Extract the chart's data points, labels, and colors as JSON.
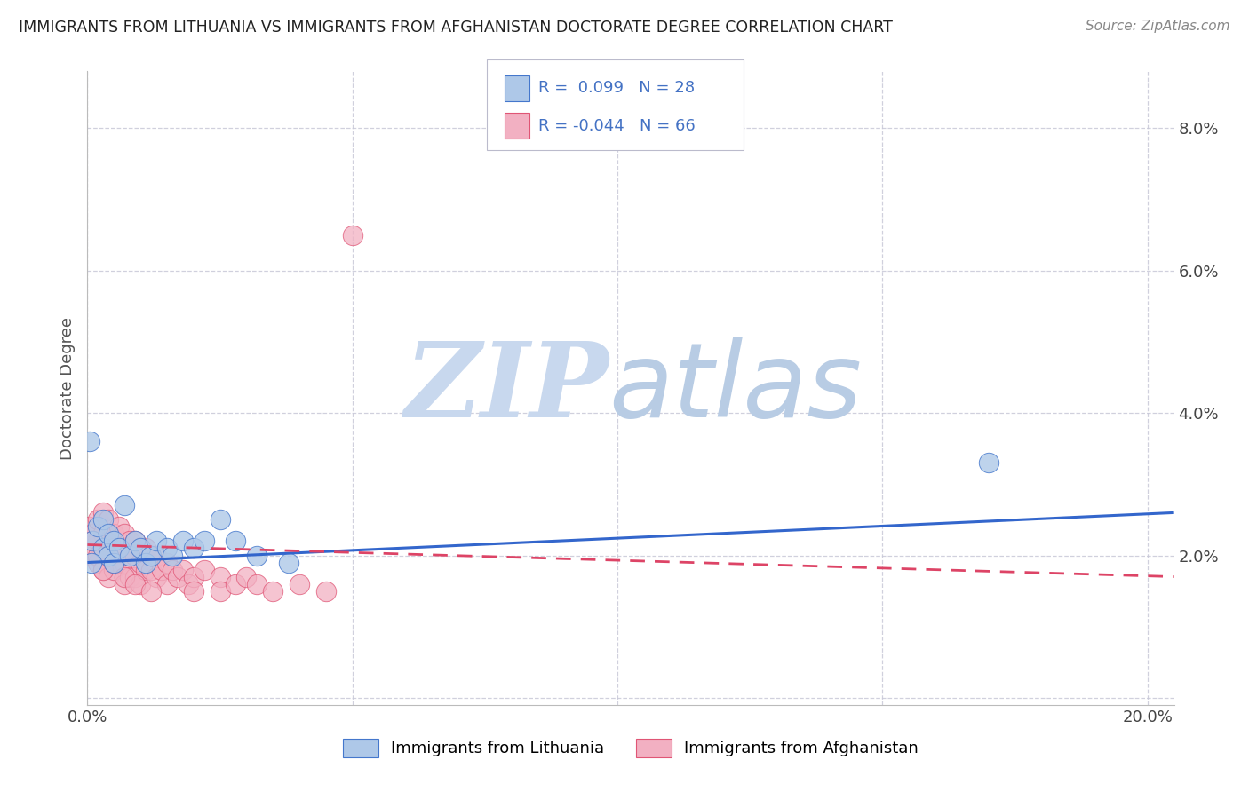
{
  "title": "IMMIGRANTS FROM LITHUANIA VS IMMIGRANTS FROM AFGHANISTAN DOCTORATE DEGREE CORRELATION CHART",
  "source": "Source: ZipAtlas.com",
  "ylabel": "Doctorate Degree",
  "xmin": 0.0,
  "xmax": 0.205,
  "ymin": -0.001,
  "ymax": 0.088,
  "yticks": [
    0.0,
    0.02,
    0.04,
    0.06,
    0.08
  ],
  "ytick_labels": [
    "",
    "2.0%",
    "4.0%",
    "6.0%",
    "8.0%"
  ],
  "xticks": [
    0.0,
    0.05,
    0.1,
    0.15,
    0.2
  ],
  "xtick_labels": [
    "0.0%",
    "",
    "",
    "",
    "20.0%"
  ],
  "lithuania_color": "#aec8e8",
  "afghanistan_color": "#f2b0c2",
  "lithuania_edge_color": "#4477cc",
  "afghanistan_edge_color": "#e05575",
  "lithuania_line_color": "#3366cc",
  "afghanistan_line_color": "#dd4466",
  "R_lithuania": 0.099,
  "N_lithuania": 28,
  "R_afghanistan": -0.044,
  "N_afghanistan": 66,
  "legend_text_color": "#4472c4",
  "watermark_zip_color": "#c8d8ee",
  "watermark_atlas_color": "#b8cce4",
  "grid_color": "#c8c8d8",
  "background_color": "#ffffff",
  "lithuania_x": [
    0.0005,
    0.001,
    0.002,
    0.003,
    0.003,
    0.004,
    0.004,
    0.005,
    0.005,
    0.006,
    0.007,
    0.008,
    0.009,
    0.01,
    0.011,
    0.012,
    0.013,
    0.015,
    0.016,
    0.018,
    0.02,
    0.022,
    0.025,
    0.028,
    0.032,
    0.038,
    0.17,
    0.0008
  ],
  "lithuania_y": [
    0.036,
    0.022,
    0.024,
    0.021,
    0.025,
    0.02,
    0.023,
    0.022,
    0.019,
    0.021,
    0.027,
    0.02,
    0.022,
    0.021,
    0.019,
    0.02,
    0.022,
    0.021,
    0.02,
    0.022,
    0.021,
    0.022,
    0.025,
    0.022,
    0.02,
    0.019,
    0.033,
    0.019
  ],
  "afghanistan_x": [
    0.0005,
    0.001,
    0.001,
    0.002,
    0.002,
    0.002,
    0.003,
    0.003,
    0.003,
    0.003,
    0.004,
    0.004,
    0.004,
    0.004,
    0.005,
    0.005,
    0.005,
    0.006,
    0.006,
    0.006,
    0.007,
    0.007,
    0.007,
    0.007,
    0.008,
    0.008,
    0.008,
    0.009,
    0.009,
    0.009,
    0.01,
    0.01,
    0.01,
    0.011,
    0.011,
    0.012,
    0.012,
    0.013,
    0.013,
    0.014,
    0.015,
    0.015,
    0.016,
    0.017,
    0.018,
    0.019,
    0.02,
    0.022,
    0.025,
    0.025,
    0.028,
    0.03,
    0.032,
    0.035,
    0.04,
    0.045,
    0.001,
    0.002,
    0.003,
    0.004,
    0.005,
    0.007,
    0.009,
    0.012,
    0.02,
    0.05
  ],
  "afghanistan_y": [
    0.024,
    0.023,
    0.02,
    0.025,
    0.022,
    0.019,
    0.026,
    0.023,
    0.021,
    0.018,
    0.025,
    0.022,
    0.02,
    0.017,
    0.023,
    0.021,
    0.018,
    0.024,
    0.021,
    0.019,
    0.023,
    0.021,
    0.019,
    0.016,
    0.022,
    0.02,
    0.017,
    0.022,
    0.02,
    0.017,
    0.021,
    0.019,
    0.016,
    0.021,
    0.018,
    0.02,
    0.018,
    0.02,
    0.017,
    0.018,
    0.019,
    0.016,
    0.018,
    0.017,
    0.018,
    0.016,
    0.017,
    0.018,
    0.017,
    0.015,
    0.016,
    0.017,
    0.016,
    0.015,
    0.016,
    0.015,
    0.022,
    0.02,
    0.018,
    0.02,
    0.019,
    0.017,
    0.016,
    0.015,
    0.015,
    0.065
  ]
}
